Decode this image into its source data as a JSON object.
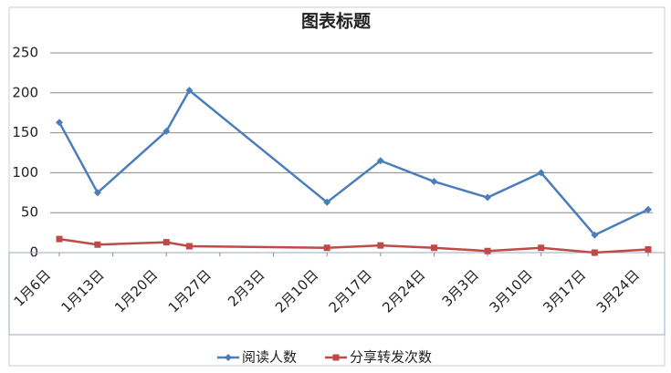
{
  "chart_data": {
    "type": "line",
    "title": "图表标题",
    "x": [
      0,
      5,
      14,
      17,
      35,
      42,
      49,
      56,
      63,
      70,
      77
    ],
    "xlim": [
      0,
      77
    ],
    "xticks": [
      {
        "value": 0,
        "label": "1月6日"
      },
      {
        "value": 7,
        "label": "1月13日"
      },
      {
        "value": 14,
        "label": "1月20日"
      },
      {
        "value": 21,
        "label": "1月27日"
      },
      {
        "value": 28,
        "label": "2月3日"
      },
      {
        "value": 35,
        "label": "2月10日"
      },
      {
        "value": 42,
        "label": "2月17日"
      },
      {
        "value": 49,
        "label": "2月24日"
      },
      {
        "value": 56,
        "label": "3月3日"
      },
      {
        "value": 63,
        "label": "3月10日"
      },
      {
        "value": 70,
        "label": "3月17日"
      },
      {
        "value": 77,
        "label": "3月24日"
      }
    ],
    "ylim": [
      0,
      250
    ],
    "yticks": [
      0,
      50,
      100,
      150,
      200,
      250
    ],
    "grid": true,
    "series": [
      {
        "name": "阅读人数",
        "color": "#4a7ebb",
        "values": [
          163,
          75,
          152,
          203,
          63,
          115,
          89,
          69,
          100,
          22,
          54
        ]
      },
      {
        "name": "分享转发次数",
        "color": "#be4b48",
        "values": [
          17,
          10,
          13,
          8,
          6,
          9,
          6,
          2,
          6,
          0,
          4
        ]
      }
    ]
  }
}
